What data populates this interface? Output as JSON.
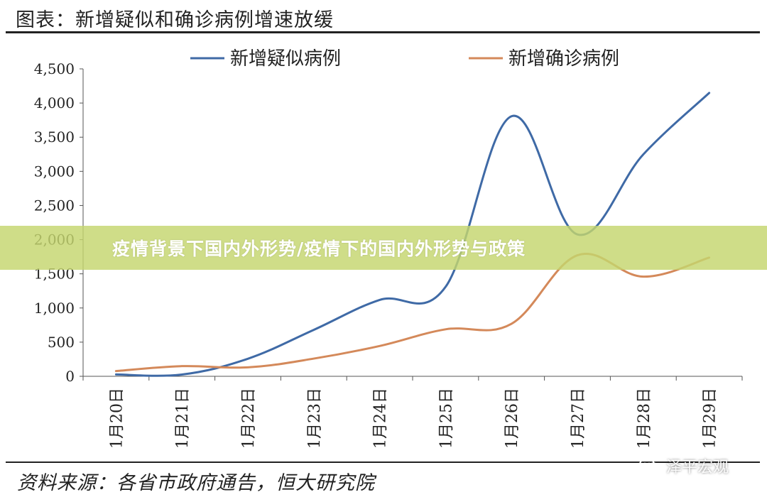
{
  "figure": {
    "title": "图表：新增疑似和确诊病例增速放缓",
    "source": "资料来源：各省市政府通告，恒大研究院"
  },
  "banner": {
    "text": "疫情背景下国内外形势/疫情下的国内外形势与政策"
  },
  "watermark": {
    "text": "泽平宏观",
    "icon": "wechat-icon"
  },
  "chart_data": {
    "type": "line",
    "title": "图表：新增疑似和确诊病例增速放缓",
    "categories": [
      "1月20日",
      "1月21日",
      "1月22日",
      "1月23日",
      "1月24日",
      "1月25日",
      "1月26日",
      "1月27日",
      "1月28日",
      "1月29日"
    ],
    "series": [
      {
        "name": "新增疑似病例",
        "color": "#3f6aa6",
        "values": [
          27,
          26,
          257,
          680,
          1118,
          1309,
          3806,
          2077,
          3248,
          4148
        ]
      },
      {
        "name": "新增确诊病例",
        "color": "#d4895a",
        "values": [
          77,
          149,
          131,
          259,
          444,
          688,
          769,
          1771,
          1459,
          1737
        ]
      }
    ],
    "yticks": [
      "0",
      "500",
      "1,000",
      "1,500",
      "2,000",
      "2,500",
      "3,000",
      "3,500",
      "4,000",
      "4,500"
    ],
    "ylim": [
      0,
      4500
    ],
    "grid": false,
    "legend": "top"
  }
}
